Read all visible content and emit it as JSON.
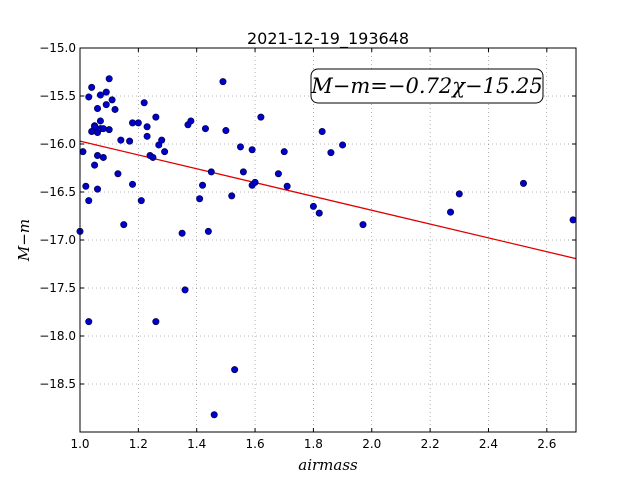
{
  "chart_data": {
    "type": "scatter",
    "title": "2021-12-19_193648",
    "xlabel": "airmass",
    "ylabel": "M−m",
    "xlim": [
      1.0,
      2.7
    ],
    "ylim": [
      -19.0,
      -15.0
    ],
    "y_inverted": true,
    "grid": true,
    "x_ticks": [
      "1.0",
      "1.2",
      "1.4",
      "1.6",
      "1.8",
      "2.0",
      "2.2",
      "2.4",
      "2.6"
    ],
    "y_ticks": [
      "−15.0",
      "−15.5",
      "−16.0",
      "−16.5",
      "−17.0",
      "−17.5",
      "−18.0",
      "−18.5"
    ],
    "annotation": "M−m=−0.72χ−15.25",
    "fit": {
      "slope": -0.72,
      "intercept": -15.25,
      "color": "#e00000"
    },
    "point_color": "#0000c8",
    "points": [
      [
        1.0,
        -16.91
      ],
      [
        1.01,
        -16.08
      ],
      [
        1.02,
        -16.44
      ],
      [
        1.03,
        -16.59
      ],
      [
        1.03,
        -17.85
      ],
      [
        1.03,
        -15.51
      ],
      [
        1.04,
        -15.41
      ],
      [
        1.04,
        -15.87
      ],
      [
        1.05,
        -15.81
      ],
      [
        1.05,
        -15.82
      ],
      [
        1.05,
        -16.22
      ],
      [
        1.06,
        -16.47
      ],
      [
        1.06,
        -15.63
      ],
      [
        1.06,
        -15.88
      ],
      [
        1.06,
        -16.12
      ],
      [
        1.07,
        -15.49
      ],
      [
        1.07,
        -15.76
      ],
      [
        1.07,
        -15.84
      ],
      [
        1.08,
        -16.14
      ],
      [
        1.08,
        -15.84
      ],
      [
        1.09,
        -15.46
      ],
      [
        1.09,
        -15.59
      ],
      [
        1.1,
        -15.85
      ],
      [
        1.1,
        -15.32
      ],
      [
        1.11,
        -15.54
      ],
      [
        1.12,
        -15.64
      ],
      [
        1.13,
        -16.31
      ],
      [
        1.14,
        -15.96
      ],
      [
        1.15,
        -16.84
      ],
      [
        1.17,
        -15.97
      ],
      [
        1.18,
        -15.78
      ],
      [
        1.18,
        -16.42
      ],
      [
        1.2,
        -15.78
      ],
      [
        1.21,
        -16.59
      ],
      [
        1.22,
        -15.57
      ],
      [
        1.23,
        -15.82
      ],
      [
        1.23,
        -15.92
      ],
      [
        1.24,
        -16.12
      ],
      [
        1.25,
        -16.14
      ],
      [
        1.26,
        -15.72
      ],
      [
        1.26,
        -17.85
      ],
      [
        1.27,
        -16.01
      ],
      [
        1.28,
        -15.96
      ],
      [
        1.29,
        -16.08
      ],
      [
        1.35,
        -16.93
      ],
      [
        1.36,
        -17.52
      ],
      [
        1.37,
        -15.8
      ],
      [
        1.38,
        -15.76
      ],
      [
        1.41,
        -16.57
      ],
      [
        1.42,
        -16.43
      ],
      [
        1.43,
        -15.84
      ],
      [
        1.44,
        -16.91
      ],
      [
        1.45,
        -16.29
      ],
      [
        1.46,
        -18.82
      ],
      [
        1.49,
        -15.35
      ],
      [
        1.5,
        -15.86
      ],
      [
        1.52,
        -16.54
      ],
      [
        1.53,
        -18.35
      ],
      [
        1.55,
        -16.03
      ],
      [
        1.56,
        -16.29
      ],
      [
        1.59,
        -16.06
      ],
      [
        1.59,
        -16.43
      ],
      [
        1.6,
        -16.4
      ],
      [
        1.62,
        -15.72
      ],
      [
        1.68,
        -16.31
      ],
      [
        1.7,
        -16.08
      ],
      [
        1.71,
        -16.44
      ],
      [
        1.8,
        -16.65
      ],
      [
        1.82,
        -16.72
      ],
      [
        1.83,
        -15.87
      ],
      [
        1.86,
        -16.09
      ],
      [
        1.9,
        -16.01
      ],
      [
        1.97,
        -16.84
      ],
      [
        2.27,
        -16.71
      ],
      [
        2.3,
        -16.52
      ],
      [
        2.52,
        -16.41
      ],
      [
        2.69,
        -16.79
      ]
    ]
  }
}
